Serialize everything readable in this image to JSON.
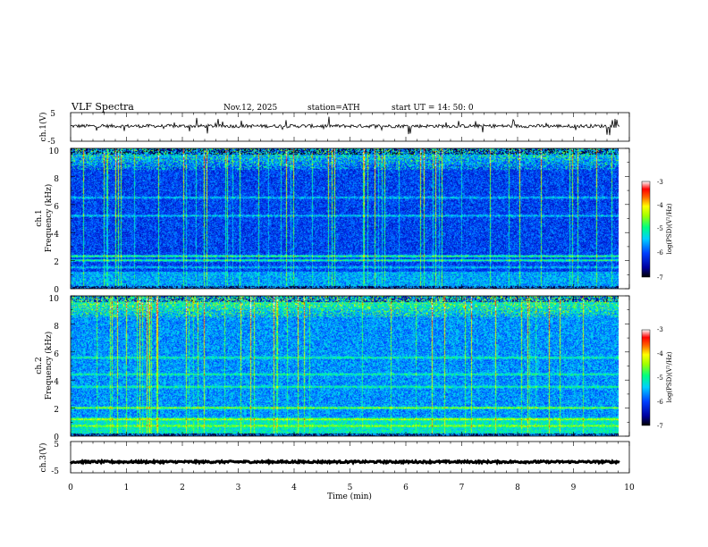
{
  "header": {
    "title": "VLF  Spectra",
    "date": "Nov.12, 2025",
    "station": "station=ATH",
    "start": "start  UT  =   14: 50: 0"
  },
  "chart_data": {
    "type": "heatmap",
    "xlabel": "Time  (min)",
    "xlim": [
      0,
      10
    ],
    "xticks": [
      "0",
      "1",
      "2",
      "3",
      "4",
      "5",
      "6",
      "7",
      "8",
      "9",
      "10"
    ],
    "data_end_min": 9.83,
    "panels": [
      {
        "id": "ch1-waveform",
        "type": "line",
        "ylabel": "ch.1(V)",
        "ylim": [
          -5,
          5
        ],
        "yticks": [
          "5",
          "-5"
        ],
        "baseline_v": 0.3,
        "noise_v": 0.6
      },
      {
        "id": "ch1-spectrogram",
        "type": "heatmap",
        "ylabel_top": "ch.1",
        "ylabel": "Frequency  (kHz)",
        "ylim": [
          0,
          10
        ],
        "yticks": [
          "0",
          "2",
          "4",
          "6",
          "8",
          "10"
        ],
        "bands_khz": [
          2.0,
          2.3,
          1.5,
          6.5,
          5.2
        ],
        "colorbar": {
          "label": "log(PSD)(V²/Hz)",
          "ticks": [
            "-3",
            "-4",
            "-5",
            "-6",
            "-7"
          ],
          "range": [
            -7,
            -3
          ]
        }
      },
      {
        "id": "ch2-spectrogram",
        "type": "heatmap",
        "ylabel_top": "ch.2",
        "ylabel": "Frequency  (kHz)",
        "ylim": [
          0,
          10
        ],
        "yticks": [
          "0",
          "2",
          "4",
          "6",
          "8",
          "10"
        ],
        "bands_khz": [
          2.0,
          1.2,
          0.7,
          3.5,
          4.4,
          5.6
        ],
        "colorbar": {
          "label": "log(PSD)(V²/Hz)",
          "ticks": [
            "-3",
            "-4",
            "-5",
            "-6",
            "-7"
          ],
          "range": [
            -7,
            -3
          ]
        }
      },
      {
        "id": "ch3-waveform",
        "type": "line",
        "ylabel": "ch.3(V)",
        "ylim": [
          -5,
          5
        ],
        "yticks": [
          "5",
          "-5"
        ],
        "baseline_v": -1.5,
        "noise_v": 0.3
      }
    ],
    "colormap": [
      "#000000",
      "#000088",
      "#0000ff",
      "#0080ff",
      "#00e0ff",
      "#00ff80",
      "#80ff00",
      "#ffff00",
      "#ff8000",
      "#ff0000",
      "#ffffff"
    ]
  }
}
